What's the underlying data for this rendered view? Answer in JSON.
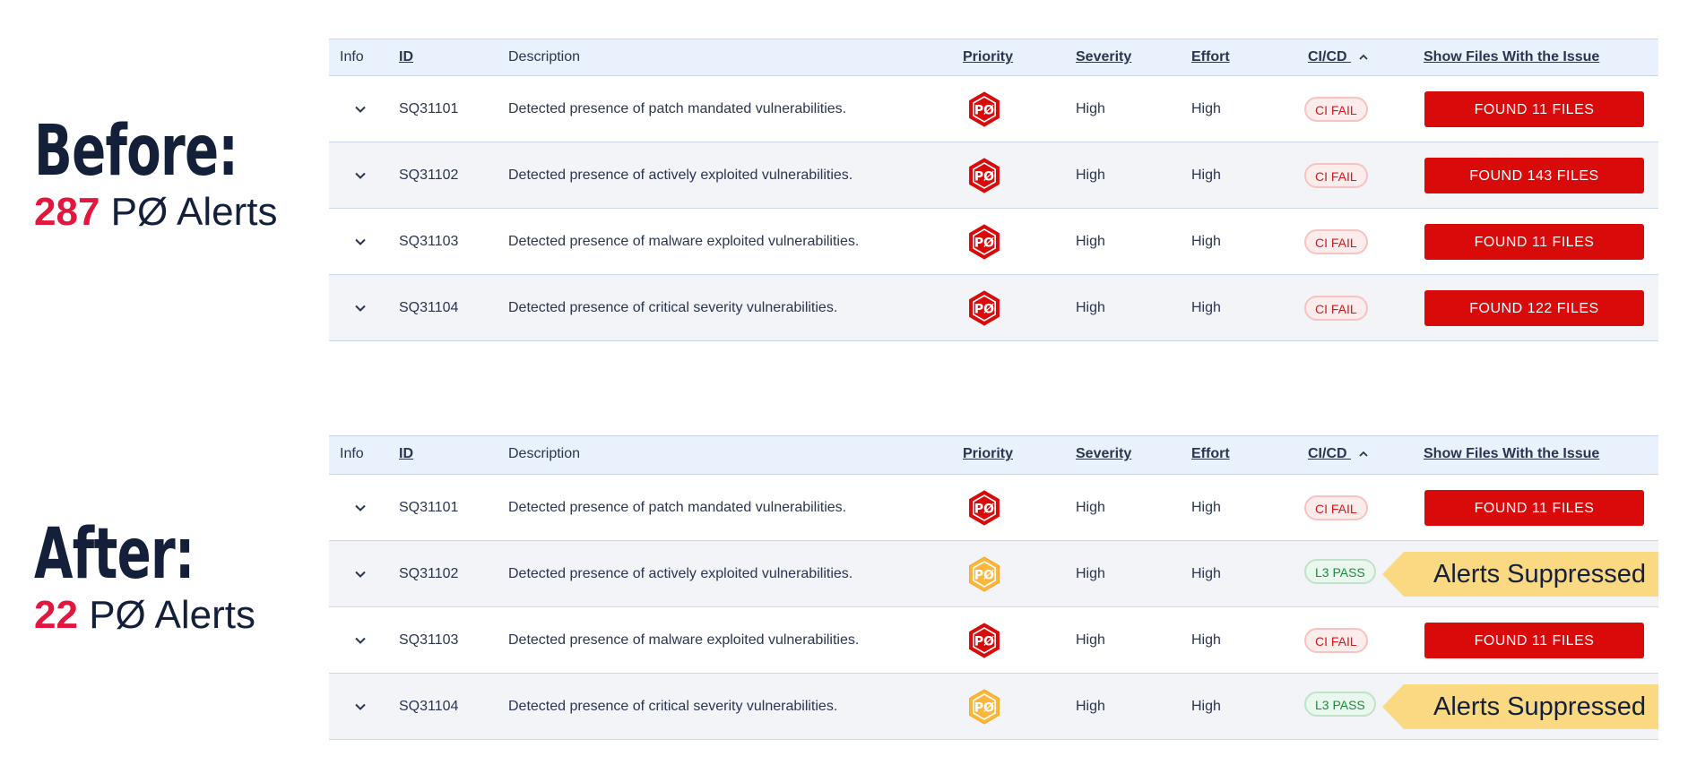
{
  "before": {
    "title": "Before:",
    "count": "287",
    "label": "PØ Alerts"
  },
  "after": {
    "title": "After:",
    "count": "22",
    "label": "PØ Alerts"
  },
  "columns": {
    "info": "Info",
    "id": "ID",
    "description": "Description",
    "priority": "Priority",
    "severity": "Severity",
    "effort": "Effort",
    "cicd": "CI/CD",
    "files": "Show Files With the Issue"
  },
  "priority_badge": "PØ",
  "colors": {
    "accent_red": "#d80a0a",
    "count_red": "#e3163e",
    "priority_orange": "#f5a623",
    "suppressed_yellow": "#fbd983",
    "header_bg": "#e8f1fc"
  },
  "before_rows": [
    {
      "id": "SQ31101",
      "description": "Detected presence of patch mandated vulnerabilities.",
      "priority_state": "red",
      "severity": "High",
      "effort": "High",
      "cicd": "CI FAIL",
      "cicd_state": "fail",
      "files": "FOUND 11 FILES"
    },
    {
      "id": "SQ31102",
      "description": "Detected presence of actively exploited vulnerabilities.",
      "priority_state": "red",
      "severity": "High",
      "effort": "High",
      "cicd": "CI FAIL",
      "cicd_state": "fail",
      "files": "FOUND 143 FILES"
    },
    {
      "id": "SQ31103",
      "description": "Detected presence of malware exploited vulnerabilities.",
      "priority_state": "red",
      "severity": "High",
      "effort": "High",
      "cicd": "CI FAIL",
      "cicd_state": "fail",
      "files": "FOUND 11 FILES"
    },
    {
      "id": "SQ31104",
      "description": "Detected presence of critical severity vulnerabilities.",
      "priority_state": "red",
      "severity": "High",
      "effort": "High",
      "cicd": "CI FAIL",
      "cicd_state": "fail",
      "files": "FOUND 122 FILES"
    }
  ],
  "after_rows": [
    {
      "id": "SQ31101",
      "description": "Detected presence of patch mandated vulnerabilities.",
      "priority_state": "red",
      "severity": "High",
      "effort": "High",
      "cicd": "CI FAIL",
      "cicd_state": "fail",
      "files": "FOUND 11 FILES"
    },
    {
      "id": "SQ31102",
      "description": "Detected presence of actively exploited vulnerabilities.",
      "priority_state": "orange",
      "severity": "High",
      "effort": "High",
      "cicd": "L3 PASS",
      "cicd_state": "pass",
      "suppressed": "Alerts Suppressed"
    },
    {
      "id": "SQ31103",
      "description": "Detected presence of malware exploited vulnerabilities.",
      "priority_state": "red",
      "severity": "High",
      "effort": "High",
      "cicd": "CI FAIL",
      "cicd_state": "fail",
      "files": "FOUND 11 FILES"
    },
    {
      "id": "SQ31104",
      "description": "Detected presence of critical severity vulnerabilities.",
      "priority_state": "orange",
      "severity": "High",
      "effort": "High",
      "cicd": "L3 PASS",
      "cicd_state": "pass",
      "suppressed": "Alerts Suppressed"
    }
  ]
}
